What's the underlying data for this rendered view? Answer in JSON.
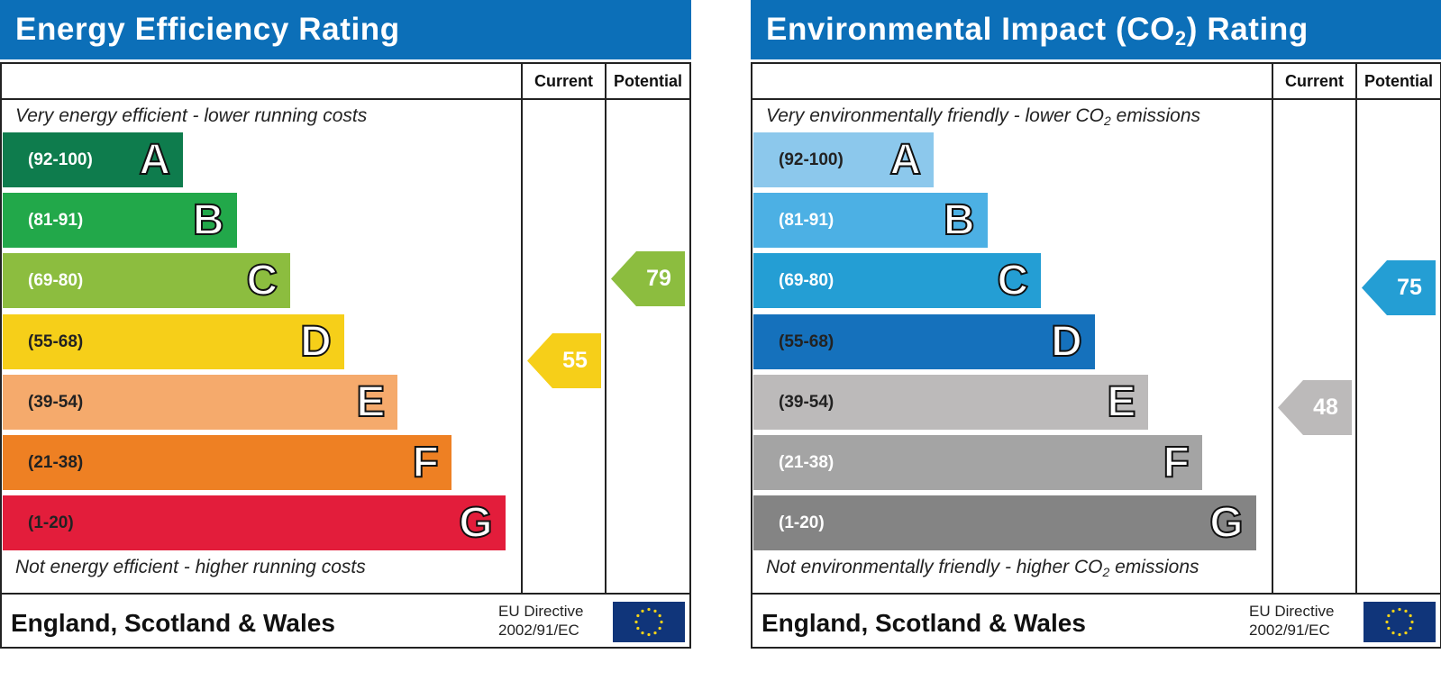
{
  "chart_data": [
    {
      "type": "bar",
      "title": "Energy Efficiency Rating",
      "columns": {
        "current": "Current",
        "potential": "Potential"
      },
      "top_note": "Very energy efficient - lower running costs",
      "bottom_note": "Not energy efficient - higher running costs",
      "categories": [
        "A",
        "B",
        "C",
        "D",
        "E",
        "F",
        "G"
      ],
      "ranges": [
        "(92-100)",
        "(81-91)",
        "(69-80)",
        "(55-68)",
        "(39-54)",
        "(21-38)",
        "(1-20)"
      ],
      "colors": [
        "#0e7c4d",
        "#22a84a",
        "#8cbd3f",
        "#f6cf19",
        "#f5aa6c",
        "#ee8023",
        "#e31d3b"
      ],
      "current": {
        "value": 55,
        "band": "D",
        "color": "#f6cf19"
      },
      "potential": {
        "value": 79,
        "band": "C",
        "color": "#8cbd3f"
      },
      "footer": {
        "region": "England, Scotland & Wales",
        "directive_line1": "EU Directive",
        "directive_line2": "2002/91/EC"
      }
    },
    {
      "type": "bar",
      "title_parts": {
        "pre": "Environmental Impact (CO",
        "sub": "2",
        "post": ") Rating"
      },
      "columns": {
        "current": "Current",
        "potential": "Potential"
      },
      "top_note_parts": {
        "pre": "Very environmentally friendly - lower CO",
        "sub": "2",
        "post": " emissions"
      },
      "bottom_note_parts": {
        "pre": "Not environmentally friendly - higher CO",
        "sub": "2",
        "post": " emissions"
      },
      "categories": [
        "A",
        "B",
        "C",
        "D",
        "E",
        "F",
        "G"
      ],
      "ranges": [
        "(92-100)",
        "(81-91)",
        "(69-80)",
        "(55-68)",
        "(39-54)",
        "(21-38)",
        "(1-20)"
      ],
      "colors": [
        "#8cc8ec",
        "#4cb0e4",
        "#249ed4",
        "#1571bc",
        "#bcbaba",
        "#a4a4a4",
        "#848484"
      ],
      "current": {
        "value": 48,
        "band": "E",
        "color": "#bcbaba"
      },
      "potential": {
        "value": 75,
        "band": "C",
        "color": "#249ed4"
      },
      "footer": {
        "region": "England, Scotland & Wales",
        "directive_line1": "EU Directive",
        "directive_line2": "2002/91/EC"
      }
    }
  ]
}
